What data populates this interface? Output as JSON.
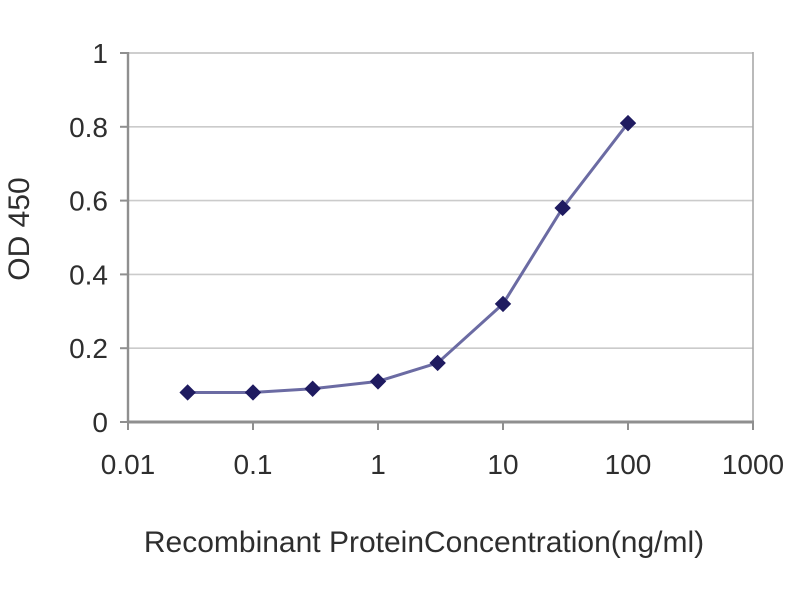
{
  "chart_data": {
    "type": "line",
    "title": "",
    "xlabel": "Recombinant ProteinConcentration(ng/ml)",
    "ylabel": "OD 450",
    "x_scale": "log",
    "xlim": [
      0.01,
      1000
    ],
    "ylim": [
      0,
      1
    ],
    "x_ticks": [
      0.01,
      0.1,
      1,
      10,
      100,
      1000
    ],
    "x_tick_labels": [
      "0.01",
      "0.1",
      "1",
      "10",
      "100",
      "1000"
    ],
    "y_ticks": [
      0,
      0.2,
      0.4,
      0.6,
      0.8,
      1
    ],
    "y_tick_labels": [
      "0",
      "0.2",
      "0.4",
      "0.6",
      "0.8",
      "1"
    ],
    "grid": "horizontal",
    "legend_position": "none",
    "series": [
      {
        "name": "OD 450",
        "marker": "diamond",
        "x": [
          0.03,
          0.1,
          0.3,
          1,
          3,
          10,
          30,
          100
        ],
        "y": [
          0.08,
          0.08,
          0.09,
          0.11,
          0.16,
          0.32,
          0.58,
          0.81
        ]
      }
    ],
    "colors": {
      "line": "#6b6ba3",
      "marker": "#1f1b60",
      "grid": "#cbcbcb",
      "grid_top": "#bdbdbd",
      "axis": "#8f8f8f",
      "text": "#2e2e2e",
      "background": "#ffffff"
    }
  }
}
